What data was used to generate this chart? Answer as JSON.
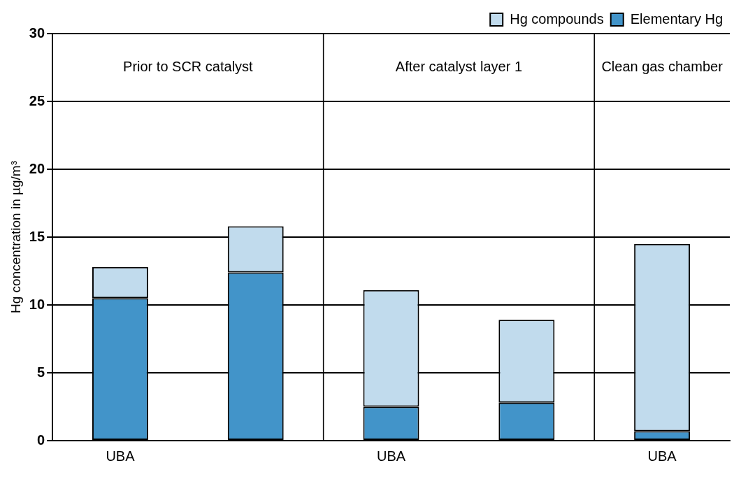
{
  "chart_data": {
    "type": "bar",
    "stacked": true,
    "ylabel": "Hg concentration in µg/m³",
    "categories": [
      "UBA",
      null,
      "UBA",
      null,
      "UBA"
    ],
    "series": [
      {
        "name": "Elementary Hg",
        "color": "#4294c9",
        "values": [
          10.5,
          12.4,
          2.5,
          2.8,
          0.7
        ]
      },
      {
        "name": "Hg compounds",
        "color": "#c1dbed",
        "values": [
          2.3,
          3.4,
          8.6,
          6.1,
          13.8
        ]
      }
    ],
    "annotations": [
      "Prior to SCR catalyst",
      "After catalyst layer 1",
      "Clean gas chamber"
    ],
    "ylim": [
      0,
      30
    ],
    "yticks": [
      0,
      5,
      10,
      15,
      20,
      25,
      30
    ],
    "grid": "y",
    "legend": "top right"
  }
}
